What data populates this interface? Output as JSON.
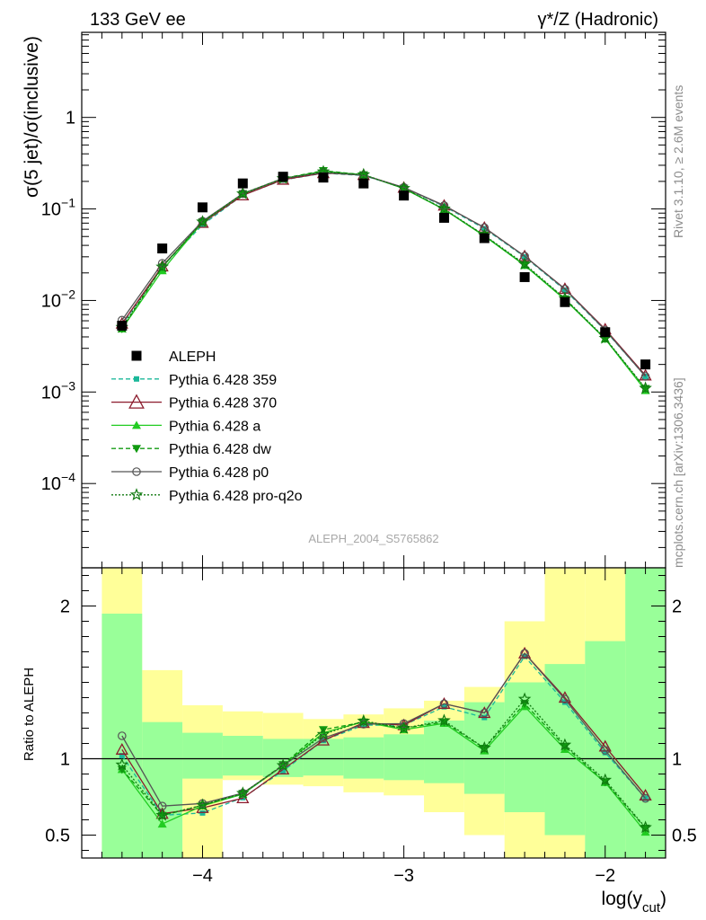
{
  "header": {
    "left": "133 GeV ee",
    "right": "γ*/Z (Hadronic)"
  },
  "side_labels": {
    "rivet": "Rivet 3.1.10, ≥ 2.6M events",
    "mcplots": "mcplots.cern.ch [arXiv:1306.3436]"
  },
  "watermark": "ALEPH_2004_S5765862",
  "chart_data": [
    {
      "type": "scatter",
      "title": "",
      "ylabel": "σ(5 jet)/σ(inclusive)",
      "yscale": "log",
      "ylim": [
        1.2e-05,
        8.5
      ],
      "xlim": [
        -4.6,
        -1.7
      ],
      "ytick_labels": [
        "10⁻⁴",
        "10⁻³",
        "10⁻²",
        "10⁻¹",
        "1"
      ],
      "legend_position": "middle-left",
      "x": [
        -4.4,
        -4.2,
        -4.0,
        -3.8,
        -3.6,
        -3.4,
        -3.2,
        -3.0,
        -2.8,
        -2.6,
        -2.4,
        -2.2,
        -2.0,
        -1.8
      ],
      "series": [
        {
          "name": "ALEPH",
          "color": "#000000",
          "marker": "square",
          "values": [
            0.0053,
            0.037,
            0.104,
            0.19,
            0.225,
            0.22,
            0.19,
            0.14,
            0.08,
            0.048,
            0.018,
            0.0096,
            0.0045,
            0.002
          ]
        },
        {
          "name": "Pythia 6.428 359",
          "color": "#1bb89a",
          "marker": "small-square",
          "line": "dashed",
          "values": [
            0.0054,
            0.0234,
            0.067,
            0.142,
            0.207,
            0.246,
            0.232,
            0.17,
            0.107,
            0.061,
            0.03,
            0.013,
            0.0047,
            0.00148
          ]
        },
        {
          "name": "Pythia 6.428 370",
          "color": "#8b1a2b",
          "marker": "open-triangle",
          "line": "solid",
          "values": [
            0.0056,
            0.0236,
            0.0705,
            0.141,
            0.209,
            0.247,
            0.235,
            0.171,
            0.109,
            0.0625,
            0.0305,
            0.0134,
            0.00485,
            0.00152
          ]
        },
        {
          "name": "Pythia 6.428 a",
          "color": "#22cc22",
          "marker": "filled-triangle",
          "line": "solid",
          "values": [
            0.0049,
            0.0212,
            0.072,
            0.146,
            0.215,
            0.258,
            0.236,
            0.167,
            0.0986,
            0.0506,
            0.0242,
            0.0102,
            0.0038,
            0.00104
          ]
        },
        {
          "name": "Pythia 6.428 dw",
          "color": "#109a10",
          "marker": "filled-inverted-triangle",
          "line": "dashed",
          "values": [
            0.0049,
            0.0232,
            0.0722,
            0.147,
            0.216,
            0.262,
            0.236,
            0.168,
            0.0992,
            0.0512,
            0.0245,
            0.0104,
            0.00382,
            0.00109
          ]
        },
        {
          "name": "Pythia 6.428 p0",
          "color": "#555555",
          "marker": "open-circle",
          "line": "solid",
          "values": [
            0.0061,
            0.0255,
            0.0735,
            0.147,
            0.215,
            0.25,
            0.233,
            0.172,
            0.109,
            0.0625,
            0.0305,
            0.0133,
            0.00475,
            0.00148
          ]
        },
        {
          "name": "Pythia 6.428 pro-q2o",
          "color": "#107a10",
          "marker": "open-star",
          "line": "dotted",
          "values": [
            0.0051,
            0.0233,
            0.0724,
            0.147,
            0.215,
            0.255,
            0.237,
            0.168,
            0.1,
            0.0515,
            0.025,
            0.0105,
            0.00387,
            0.0011
          ]
        }
      ]
    },
    {
      "type": "area",
      "ylabel": "Ratio to ALEPH",
      "xlabel": "log(y_cut)",
      "ylim": [
        0.35,
        2.25
      ],
      "xlim": [
        -4.6,
        -1.7
      ],
      "xtick_labels": [
        "−4",
        "−3",
        "−2"
      ],
      "ytick_labels": [
        "0.5",
        "1",
        "2"
      ],
      "reference_line": 1.0,
      "band_edges": [
        -4.5,
        -4.3,
        -4.1,
        -3.9,
        -3.7,
        -3.5,
        -3.3,
        -3.1,
        -2.9,
        -2.7,
        -2.5,
        -2.3,
        -2.1,
        -1.9,
        -1.7
      ],
      "bands": {
        "yellow": {
          "color": "#ffff99",
          "lower": [
            0.35,
            0.35,
            0.35,
            0.86,
            0.83,
            0.82,
            0.78,
            0.76,
            0.65,
            0.5,
            0.35,
            0.35,
            0.35,
            0.35
          ],
          "upper": [
            2.25,
            1.58,
            1.35,
            1.31,
            1.3,
            1.26,
            1.29,
            1.33,
            1.38,
            1.47,
            1.9,
            2.25,
            2.25,
            2.25
          ]
        },
        "green": {
          "color": "#99ff99",
          "lower": [
            0.35,
            0.35,
            0.87,
            0.89,
            0.88,
            0.89,
            0.87,
            0.86,
            0.84,
            0.77,
            0.65,
            0.5,
            0.35,
            0.35
          ],
          "upper": [
            1.95,
            1.24,
            1.17,
            1.15,
            1.13,
            1.13,
            1.14,
            1.16,
            1.25,
            1.37,
            1.5,
            1.62,
            1.77,
            2.25
          ]
        }
      },
      "x": [
        -4.4,
        -4.2,
        -4.0,
        -3.8,
        -3.6,
        -3.4,
        -3.2,
        -3.0,
        -2.8,
        -2.6,
        -2.4,
        -2.2,
        -2.0,
        -1.8
      ],
      "series": [
        {
          "name": "Pythia 6.428 359",
          "values": [
            1.02,
            0.63,
            0.645,
            0.745,
            0.92,
            1.12,
            1.22,
            1.22,
            1.34,
            1.27,
            1.67,
            1.37,
            1.04,
            0.74
          ]
        },
        {
          "name": "Pythia 6.428 370",
          "values": [
            1.06,
            0.64,
            0.678,
            0.742,
            0.93,
            1.12,
            1.235,
            1.22,
            1.36,
            1.3,
            1.69,
            1.4,
            1.08,
            0.76
          ]
        },
        {
          "name": "Pythia 6.428 a",
          "values": [
            0.93,
            0.573,
            0.692,
            0.768,
            0.955,
            1.17,
            1.242,
            1.19,
            1.232,
            1.052,
            1.342,
            1.062,
            0.845,
            0.52
          ]
        },
        {
          "name": "Pythia 6.428 dw",
          "values": [
            0.93,
            0.628,
            0.695,
            0.772,
            0.96,
            1.19,
            1.24,
            1.2,
            1.24,
            1.068,
            1.36,
            1.08,
            0.848,
            0.545
          ]
        },
        {
          "name": "Pythia 6.428 p0",
          "values": [
            1.15,
            0.69,
            0.707,
            0.775,
            0.955,
            1.135,
            1.226,
            1.23,
            1.36,
            1.3,
            1.69,
            1.39,
            1.055,
            0.74
          ]
        },
        {
          "name": "Pythia 6.428 pro-q2o",
          "values": [
            0.96,
            0.63,
            0.696,
            0.774,
            0.956,
            1.16,
            1.247,
            1.2,
            1.25,
            1.07,
            1.39,
            1.09,
            0.86,
            0.55
          ]
        }
      ]
    }
  ]
}
